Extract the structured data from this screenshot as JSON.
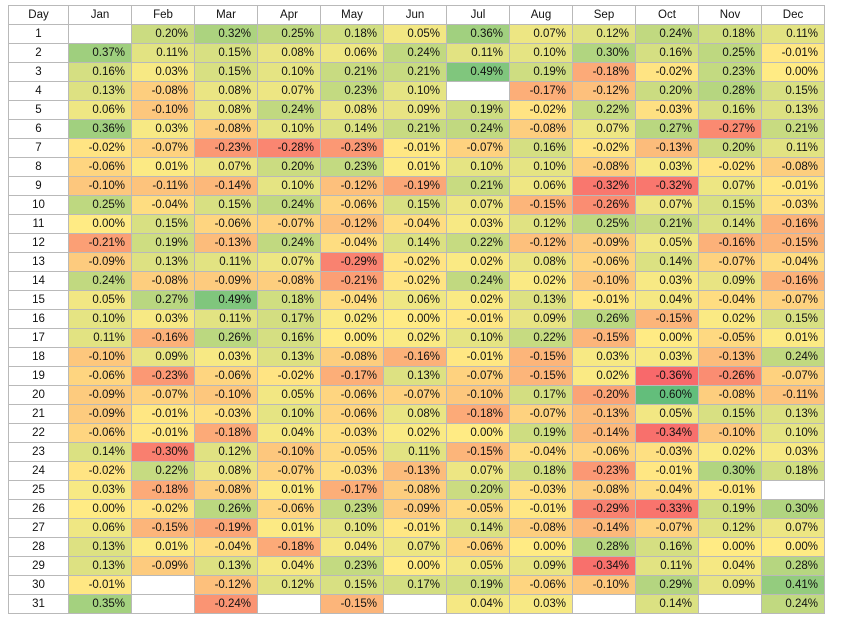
{
  "chart_data": {
    "type": "heatmap",
    "row_header": "Day",
    "columns": [
      "Jan",
      "Feb",
      "Mar",
      "Apr",
      "May",
      "Jun",
      "Jul",
      "Aug",
      "Sep",
      "Oct",
      "Nov",
      "Dec"
    ],
    "rows": [
      "1",
      "2",
      "3",
      "4",
      "5",
      "6",
      "7",
      "8",
      "9",
      "10",
      "11",
      "12",
      "13",
      "14",
      "15",
      "16",
      "17",
      "18",
      "19",
      "20",
      "21",
      "22",
      "23",
      "24",
      "25",
      "26",
      "27",
      "28",
      "29",
      "30",
      "31"
    ],
    "values": [
      [
        null,
        0.2,
        0.32,
        0.25,
        0.18,
        0.05,
        0.36,
        0.07,
        0.12,
        0.24,
        0.18,
        0.11
      ],
      [
        0.37,
        0.11,
        0.15,
        0.08,
        0.06,
        0.24,
        0.11,
        0.1,
        0.3,
        0.16,
        0.25,
        -0.01
      ],
      [
        0.16,
        0.03,
        0.15,
        0.1,
        0.21,
        0.21,
        0.49,
        0.19,
        -0.18,
        -0.02,
        0.23,
        0.0
      ],
      [
        0.13,
        -0.08,
        0.08,
        0.07,
        0.23,
        0.1,
        null,
        -0.17,
        -0.12,
        0.2,
        0.28,
        0.15
      ],
      [
        0.06,
        -0.1,
        0.08,
        0.24,
        0.08,
        0.09,
        0.19,
        -0.02,
        0.22,
        -0.03,
        0.16,
        0.13
      ],
      [
        0.36,
        0.03,
        -0.08,
        0.1,
        0.14,
        0.21,
        0.24,
        -0.08,
        0.07,
        0.27,
        -0.27,
        0.21
      ],
      [
        -0.02,
        -0.07,
        -0.23,
        -0.28,
        -0.23,
        -0.01,
        -0.07,
        0.16,
        -0.02,
        -0.13,
        0.2,
        0.11
      ],
      [
        -0.06,
        0.01,
        0.07,
        0.2,
        0.23,
        0.01,
        0.1,
        0.1,
        -0.08,
        0.03,
        -0.02,
        -0.08
      ],
      [
        -0.1,
        -0.11,
        -0.14,
        0.1,
        -0.12,
        -0.19,
        0.21,
        0.06,
        -0.32,
        -0.32,
        0.07,
        -0.01
      ],
      [
        0.25,
        -0.04,
        0.15,
        0.24,
        -0.06,
        0.15,
        0.07,
        -0.15,
        -0.26,
        0.07,
        0.15,
        -0.03
      ],
      [
        0.0,
        0.15,
        -0.06,
        -0.07,
        -0.12,
        -0.04,
        0.03,
        0.12,
        0.25,
        0.21,
        0.14,
        -0.16
      ],
      [
        -0.21,
        0.19,
        -0.13,
        0.24,
        -0.04,
        0.14,
        0.22,
        -0.12,
        -0.09,
        0.05,
        -0.16,
        -0.15
      ],
      [
        -0.09,
        0.13,
        0.11,
        0.07,
        -0.29,
        -0.02,
        0.02,
        0.08,
        -0.06,
        0.14,
        -0.07,
        -0.04
      ],
      [
        0.24,
        -0.08,
        -0.09,
        -0.08,
        -0.21,
        -0.02,
        0.24,
        0.02,
        -0.1,
        0.03,
        0.09,
        -0.16
      ],
      [
        0.05,
        0.27,
        0.49,
        0.18,
        -0.04,
        0.06,
        0.02,
        0.13,
        -0.01,
        0.04,
        -0.04,
        -0.07
      ],
      [
        0.1,
        0.03,
        0.11,
        0.17,
        0.02,
        0.0,
        -0.01,
        0.09,
        0.26,
        -0.15,
        0.02,
        0.15
      ],
      [
        0.11,
        -0.16,
        0.26,
        0.16,
        0.0,
        0.02,
        0.1,
        0.22,
        -0.15,
        0.0,
        -0.05,
        0.01
      ],
      [
        -0.1,
        0.09,
        0.03,
        0.13,
        -0.08,
        -0.16,
        -0.01,
        -0.15,
        0.03,
        0.03,
        -0.13,
        0.24
      ],
      [
        -0.06,
        -0.23,
        -0.06,
        -0.02,
        -0.17,
        0.13,
        -0.07,
        -0.15,
        0.02,
        -0.36,
        -0.26,
        -0.07
      ],
      [
        -0.09,
        -0.07,
        -0.1,
        0.05,
        -0.06,
        -0.07,
        -0.1,
        0.17,
        -0.2,
        0.6,
        -0.08,
        -0.11
      ],
      [
        -0.09,
        -0.01,
        -0.03,
        0.1,
        -0.06,
        0.08,
        -0.18,
        -0.07,
        -0.13,
        0.05,
        0.15,
        0.13
      ],
      [
        -0.06,
        -0.01,
        -0.18,
        0.04,
        -0.03,
        0.02,
        0.0,
        0.19,
        -0.14,
        -0.34,
        -0.1,
        0.1
      ],
      [
        0.14,
        -0.3,
        0.12,
        -0.1,
        -0.05,
        0.11,
        -0.15,
        -0.04,
        -0.06,
        -0.03,
        0.02,
        0.03
      ],
      [
        -0.02,
        0.22,
        0.08,
        -0.07,
        -0.03,
        -0.13,
        0.07,
        0.18,
        -0.23,
        -0.01,
        0.3,
        0.18
      ],
      [
        0.03,
        -0.18,
        -0.08,
        0.01,
        -0.17,
        -0.08,
        0.2,
        -0.03,
        -0.08,
        -0.04,
        -0.01,
        null
      ],
      [
        0.0,
        -0.02,
        0.26,
        -0.06,
        0.23,
        -0.09,
        -0.05,
        -0.01,
        -0.29,
        -0.33,
        0.19,
        0.3
      ],
      [
        0.06,
        -0.15,
        -0.19,
        0.01,
        0.1,
        -0.01,
        0.14,
        -0.08,
        -0.14,
        -0.07,
        0.12,
        0.07
      ],
      [
        0.13,
        0.01,
        -0.04,
        -0.18,
        0.04,
        0.07,
        -0.06,
        0.0,
        0.28,
        0.16,
        0.0,
        0.0
      ],
      [
        0.13,
        -0.09,
        0.13,
        0.04,
        0.23,
        0.0,
        0.05,
        0.09,
        -0.34,
        0.11,
        0.04,
        0.28
      ],
      [
        -0.01,
        null,
        -0.12,
        0.12,
        0.15,
        0.17,
        0.19,
        -0.06,
        -0.1,
        0.29,
        0.09,
        0.41
      ],
      [
        0.35,
        null,
        -0.24,
        null,
        -0.15,
        null,
        0.04,
        0.03,
        null,
        0.14,
        null,
        0.24
      ]
    ],
    "value_format": "percent",
    "decimals": 2,
    "colors": {
      "negative": "#f8696b",
      "neutral": "#ffeb84",
      "positive": "#63be7b",
      "empty": "#ffffff"
    }
  }
}
